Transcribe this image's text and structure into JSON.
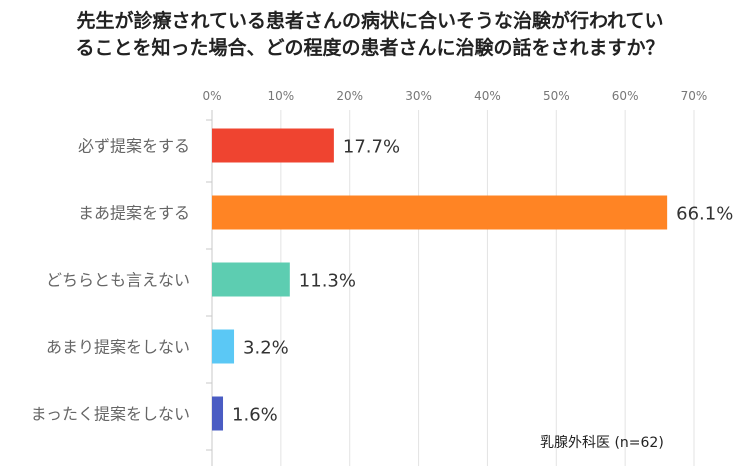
{
  "title": {
    "line1": "先生が診療されている患者さんの病状に合いそうな治験が行われてい",
    "line2": "ることを知った場合、どの程度の患者さんに治験の話をされますか？"
  },
  "note": "乳腺外科医 (n=62)",
  "chart_data": {
    "type": "bar",
    "orientation": "horizontal",
    "categories": [
      "必ず提案をする",
      "まあ提案をする",
      "どちらとも言えない",
      "あまり提案をしない",
      "まったく提案をしない"
    ],
    "values": [
      17.7,
      66.1,
      11.3,
      3.2,
      1.6
    ],
    "value_labels": [
      "17.7%",
      "66.1%",
      "11.3%",
      "3.2%",
      "1.6%"
    ],
    "colors": [
      "#EF4430",
      "#FF8424",
      "#5DCDB1",
      "#5BC8F5",
      "#4A5CC3"
    ],
    "xlim": [
      0,
      70
    ],
    "xticks": [
      0,
      10,
      20,
      30,
      40,
      50,
      60,
      70
    ],
    "xtick_labels": [
      "0%",
      "10%",
      "20%",
      "30%",
      "40%",
      "50%",
      "60%",
      "70%"
    ],
    "grid": true,
    "axis_position": "top"
  }
}
